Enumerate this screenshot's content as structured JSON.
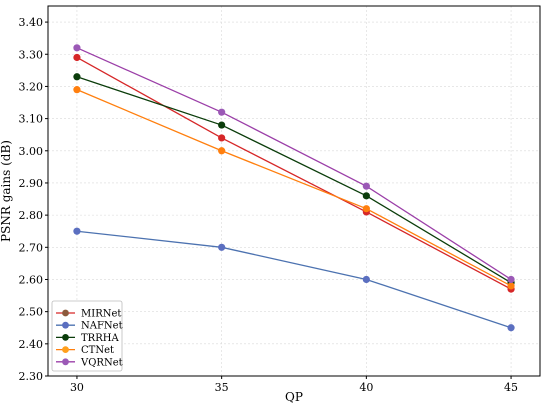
{
  "chart_data": {
    "type": "line",
    "xlabel": "QP",
    "ylabel": "PSNR gains (dB)",
    "x": [
      30,
      35,
      40,
      45
    ],
    "xlim": [
      29,
      46
    ],
    "ylim": [
      2.3,
      3.45
    ],
    "yticks": [
      "2.30",
      "2.40",
      "2.50",
      "2.60",
      "2.70",
      "2.80",
      "2.90",
      "3.00",
      "3.10",
      "3.20",
      "3.30",
      "3.40"
    ],
    "xticks": [
      "30",
      "35",
      "40",
      "45"
    ],
    "grid": true,
    "legend_position": "lower-left",
    "series": [
      {
        "name": "MIRNet",
        "values": [
          3.29,
          3.04,
          2.81,
          2.57
        ],
        "line_color": "#d62728",
        "marker_color": "#d62728",
        "legend_marker": "#8c5a3c"
      },
      {
        "name": "NAFNet",
        "values": [
          2.75,
          2.7,
          2.6,
          2.45
        ],
        "line_color": "#4c72b0",
        "marker_color": "#5b6fc0",
        "legend_marker": "#5b6fc0"
      },
      {
        "name": "TRRHA",
        "values": [
          3.23,
          3.08,
          2.86,
          2.59
        ],
        "line_color": "#0b3d0b",
        "marker_color": "#0b3d0b",
        "legend_marker": "#0b3d0b"
      },
      {
        "name": "CTNet",
        "values": [
          3.19,
          3.0,
          2.82,
          2.58
        ],
        "line_color": "#ff7f0e",
        "marker_color": "#ff7f0e",
        "legend_marker": "#ff9f1c"
      },
      {
        "name": "VQRNet",
        "values": [
          3.32,
          3.12,
          2.89,
          2.6
        ],
        "line_color": "#9b3fa8",
        "marker_color": "#9b59b6",
        "legend_marker": "#9b59b6"
      }
    ]
  }
}
